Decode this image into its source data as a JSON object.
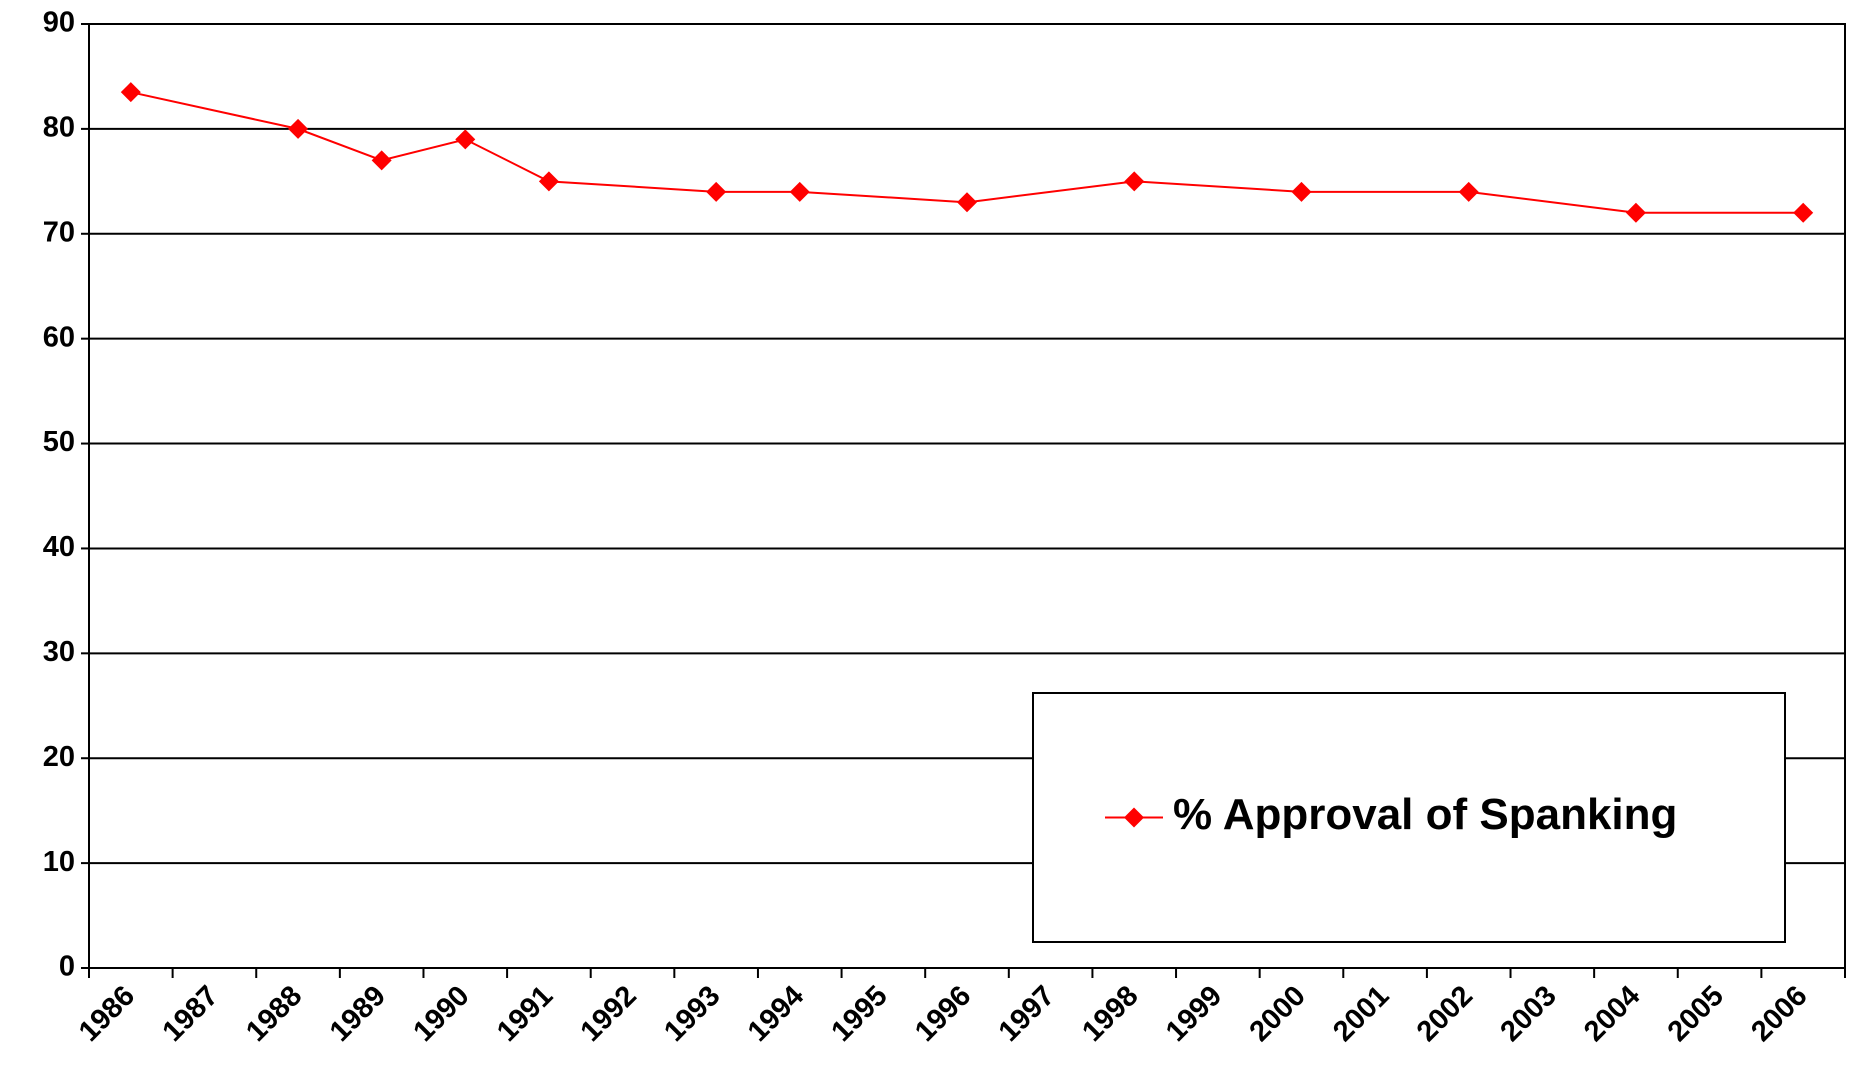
{
  "chart_data": {
    "type": "line",
    "x": [
      1986,
      1988,
      1989,
      1990,
      1991,
      1993,
      1994,
      1996,
      1998,
      2000,
      2002,
      2004,
      2006
    ],
    "series": [
      {
        "name": "% Approval of Spanking",
        "color": "#ff0000",
        "values": [
          83.5,
          80,
          77,
          79,
          75,
          74,
          74,
          73,
          75,
          74,
          74,
          72,
          72
        ]
      }
    ],
    "xlim": [
      1985.5,
      2006.5
    ],
    "xticks": [
      1986,
      1987,
      1988,
      1989,
      1990,
      1991,
      1992,
      1993,
      1994,
      1995,
      1996,
      1997,
      1998,
      1999,
      2000,
      2001,
      2002,
      2003,
      2004,
      2005,
      2006
    ],
    "ylim": [
      0,
      90
    ],
    "yticks": [
      0,
      10,
      20,
      30,
      40,
      50,
      60,
      70,
      80,
      90
    ],
    "grid": true,
    "legend": "lower right"
  }
}
